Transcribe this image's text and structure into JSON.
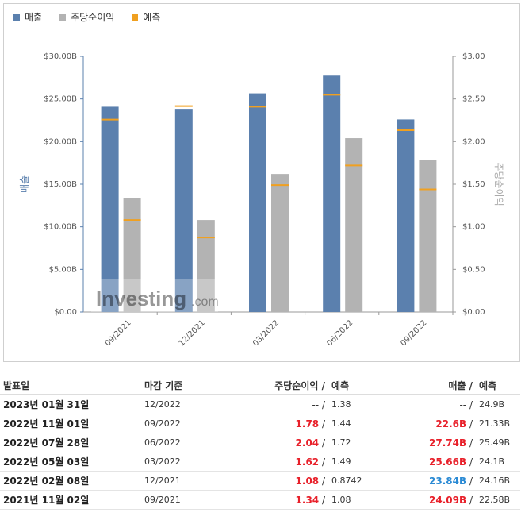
{
  "legend": [
    {
      "label": "매출",
      "color": "#5b80ae"
    },
    {
      "label": "주당순이익",
      "color": "#b3b3b3"
    },
    {
      "label": "예측",
      "color": "#f0a020"
    }
  ],
  "chart_data": {
    "type": "bar",
    "categories": [
      "09/2021",
      "12/2021",
      "03/2022",
      "06/2022",
      "09/2022"
    ],
    "series": [
      {
        "name": "매출",
        "axis": "left",
        "values": [
          24.09,
          23.84,
          25.66,
          27.74,
          22.6
        ],
        "forecast": [
          22.58,
          24.16,
          24.1,
          25.49,
          21.33
        ]
      },
      {
        "name": "주당순이익",
        "axis": "right",
        "values": [
          1.34,
          1.08,
          1.62,
          2.04,
          1.78
        ],
        "forecast": [
          1.08,
          0.8742,
          1.49,
          1.72,
          1.44
        ]
      }
    ],
    "ylabel": "매출",
    "y2label": "주당순이익",
    "ylim": [
      0,
      30
    ],
    "y2lim": [
      0,
      3
    ],
    "y_ticks": [
      "$0.00",
      "$5.00B",
      "$10.00B",
      "$15.00B",
      "$20.00B",
      "$25.00B",
      "$30.00B"
    ],
    "y2_ticks": [
      "$0.00",
      "$0.50",
      "$1.00",
      "$1.50",
      "$2.00",
      "$2.50",
      "$3.00"
    ],
    "grid": false,
    "legend_position": "top-left"
  },
  "watermark": {
    "brand": "Investing",
    "suffix": ".com"
  },
  "table": {
    "headers": {
      "date": "발표일",
      "period": "마감 기준",
      "eps": "주당순이익",
      "slash": "/",
      "eps_forecast": "예측",
      "revenue": "매출",
      "revenue_forecast": "예측"
    },
    "rows": [
      {
        "date": "2023년 01월 31일",
        "period": "12/2022",
        "eps": "--",
        "eps_forecast": "1.38",
        "revenue": "--",
        "revenue_forecast": "24.9B",
        "eps_color": "#333333",
        "revenue_color": "#333333"
      },
      {
        "date": "2022년 11월 01일",
        "period": "09/2022",
        "eps": "1.78",
        "eps_forecast": "1.44",
        "revenue": "22.6B",
        "revenue_forecast": "21.33B",
        "eps_color": "#e8202a",
        "revenue_color": "#e8202a"
      },
      {
        "date": "2022년 07월 28일",
        "period": "06/2022",
        "eps": "2.04",
        "eps_forecast": "1.72",
        "revenue": "27.74B",
        "revenue_forecast": "25.49B",
        "eps_color": "#e8202a",
        "revenue_color": "#e8202a"
      },
      {
        "date": "2022년 05월 03일",
        "period": "03/2022",
        "eps": "1.62",
        "eps_forecast": "1.49",
        "revenue": "25.66B",
        "revenue_forecast": "24.1B",
        "eps_color": "#e8202a",
        "revenue_color": "#e8202a"
      },
      {
        "date": "2022년 02월 08일",
        "period": "12/2021",
        "eps": "1.08",
        "eps_forecast": "0.8742",
        "revenue": "23.84B",
        "revenue_forecast": "24.16B",
        "eps_color": "#e8202a",
        "revenue_color": "#2a8ad4"
      },
      {
        "date": "2021년 11월 02일",
        "period": "09/2021",
        "eps": "1.34",
        "eps_forecast": "1.08",
        "revenue": "24.09B",
        "revenue_forecast": "22.58B",
        "eps_color": "#e8202a",
        "revenue_color": "#e8202a"
      }
    ]
  }
}
